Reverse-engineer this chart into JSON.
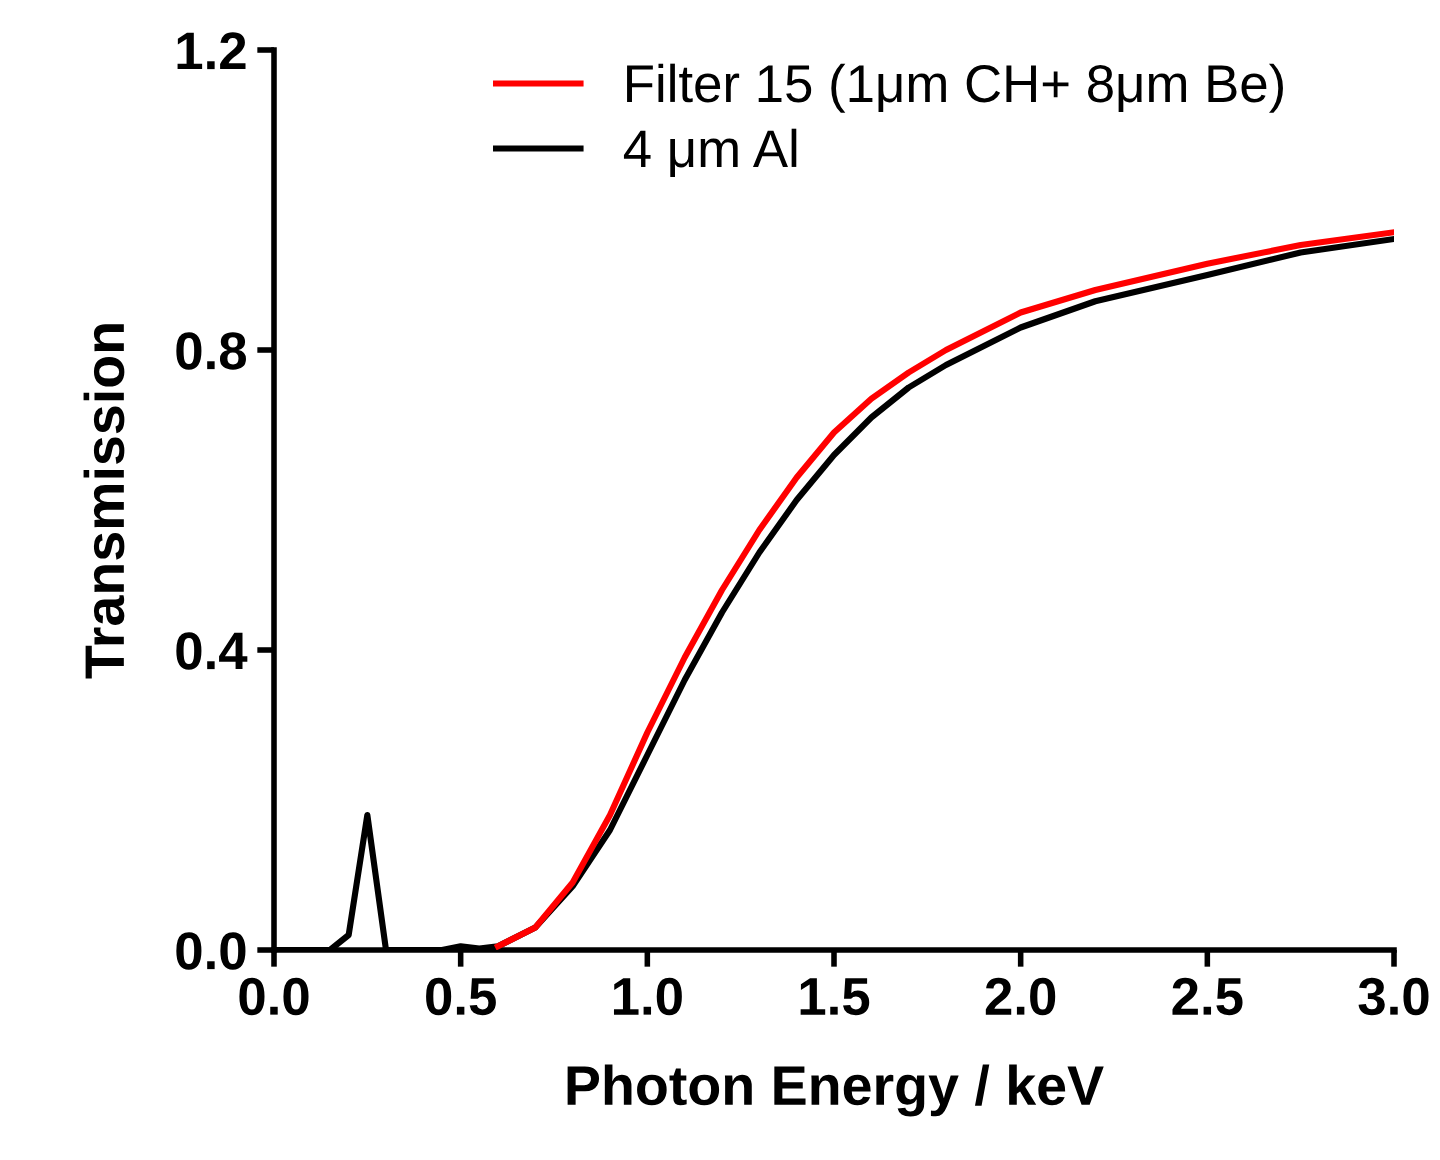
{
  "chart_data": {
    "type": "line",
    "xlabel": "Photon Energy / keV",
    "ylabel": "Transmission",
    "xlim": [
      0,
      3
    ],
    "xticks": [
      {
        "value": 0,
        "label": "0.0"
      },
      0.5,
      {
        "value": 1,
        "label": "1.0"
      },
      1.5,
      {
        "value": 2,
        "label": "2.0"
      },
      2.5,
      {
        "value": 3,
        "label": "3.0"
      }
    ],
    "ylim": [
      0,
      1.2
    ],
    "yticks": [
      {
        "value": 0,
        "label": "0.0"
      },
      0.4,
      0.8,
      1.2
    ],
    "grid": false,
    "legend": "top left",
    "marker": "none",
    "line_style": "solid",
    "series": [
      {
        "name": "Filter 15 (1μm CH+ 8μm Be)",
        "color": "#ff0000",
        "x": [
          0.6,
          0.7,
          0.8,
          0.9,
          1.0,
          1.1,
          1.2,
          1.3,
          1.4,
          1.5,
          1.6,
          1.7,
          1.8,
          2.0,
          2.2,
          2.5,
          2.75,
          3.0
        ],
        "values": [
          0.005,
          0.03,
          0.09,
          0.18,
          0.29,
          0.39,
          0.48,
          0.56,
          0.63,
          0.69,
          0.735,
          0.77,
          0.8,
          0.85,
          0.88,
          0.915,
          0.94,
          0.957
        ]
      },
      {
        "name": "4 μm Al",
        "color": "#000000",
        "x": [
          0,
          0.15,
          0.2,
          0.25,
          0.3,
          0.45,
          0.5,
          0.55,
          0.6,
          0.7,
          0.8,
          0.9,
          1.0,
          1.1,
          1.2,
          1.3,
          1.4,
          1.5,
          1.6,
          1.7,
          1.8,
          2.0,
          2.2,
          2.5,
          2.75,
          3.0
        ],
        "values": [
          0,
          0,
          0.02,
          0.18,
          0,
          0,
          0.005,
          0.002,
          0.005,
          0.03,
          0.085,
          0.16,
          0.26,
          0.36,
          0.45,
          0.53,
          0.6,
          0.66,
          0.71,
          0.75,
          0.78,
          0.83,
          0.865,
          0.9,
          0.93,
          0.948
        ]
      }
    ]
  }
}
